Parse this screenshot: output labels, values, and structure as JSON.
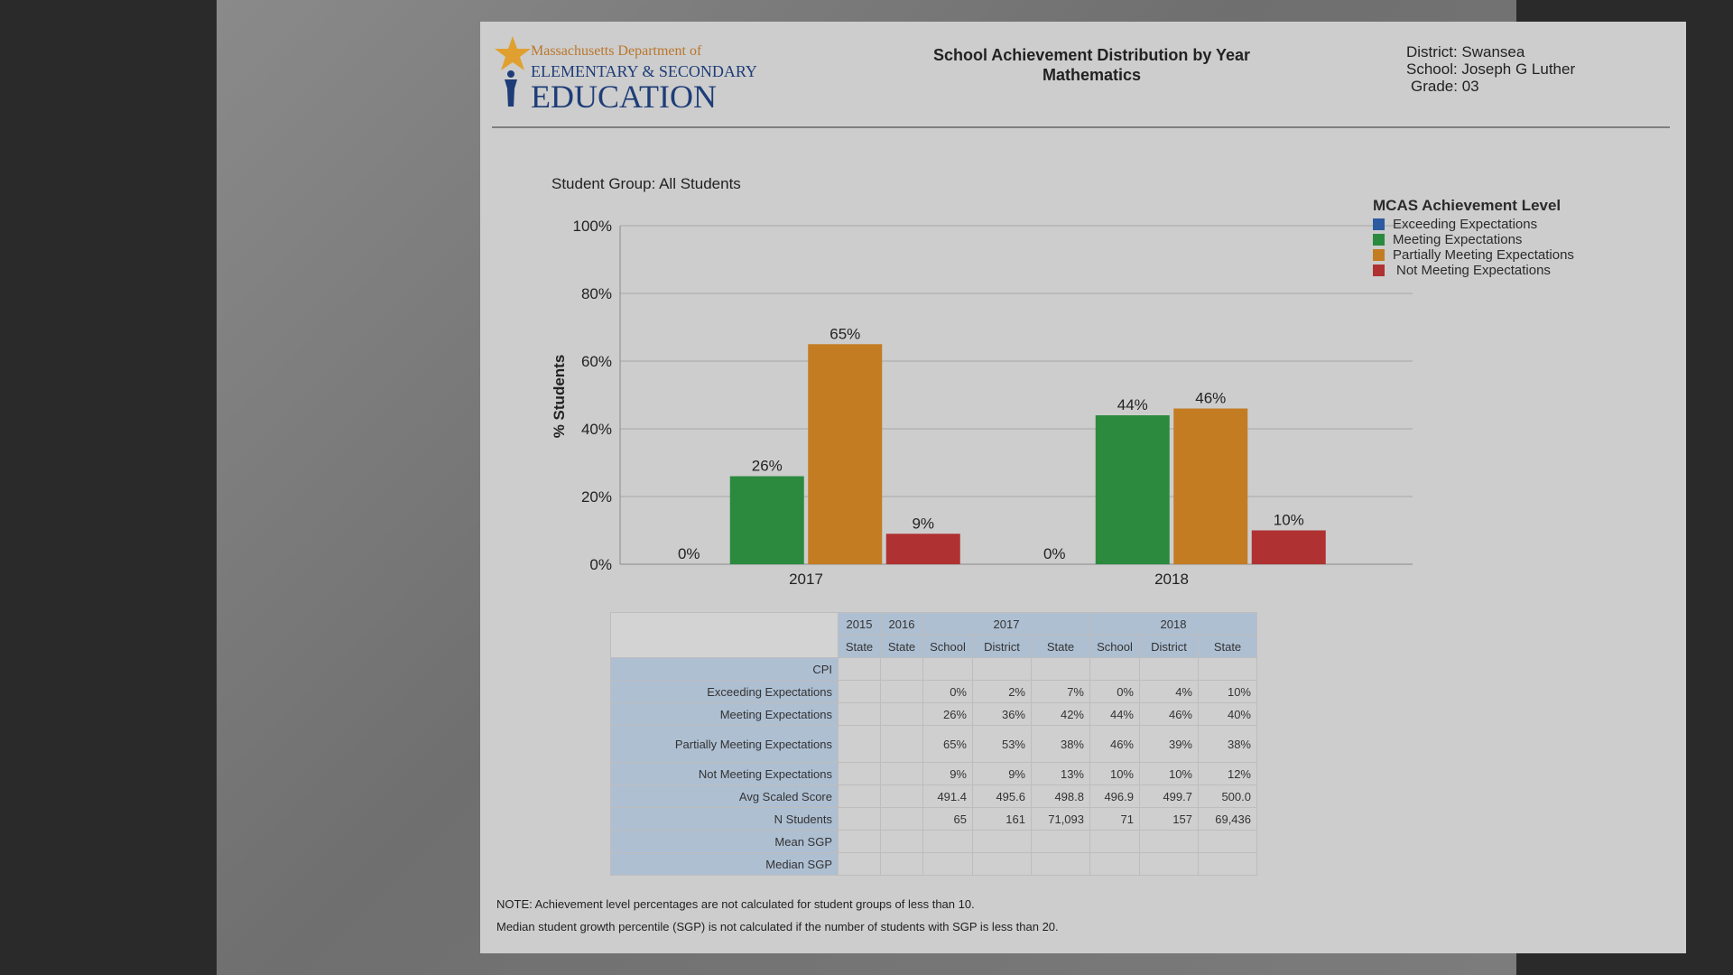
{
  "header": {
    "logo_line1": "Massachusetts Department of",
    "logo_line2": "ELEMENTARY & SECONDARY",
    "logo_line3": "EDUCATION",
    "title_line1": "School Achievement Distribution by Year",
    "title_line2": "Mathematics",
    "district": "District: Swansea",
    "school": "School: Joseph G Luther",
    "grade": "Grade: 03"
  },
  "chart_data": {
    "type": "bar",
    "title": "Student Group: All Students",
    "ylabel": "% Students",
    "xlabel": "",
    "ylim": [
      0,
      100
    ],
    "yticks": [
      "0%",
      "20%",
      "40%",
      "60%",
      "80%",
      "100%"
    ],
    "categories": [
      "2017",
      "2018"
    ],
    "series": [
      {
        "name": "Exceeding Expectations",
        "values": [
          0,
          0
        ],
        "labels": [
          "0%",
          "0%"
        ]
      },
      {
        "name": "Meeting Expectations",
        "values": [
          26,
          44
        ],
        "labels": [
          "26%",
          "44%"
        ]
      },
      {
        "name": "Partially Meeting Expectations",
        "values": [
          65,
          46
        ],
        "labels": [
          "65%",
          "46%"
        ]
      },
      {
        "name": "Not Meeting Expectations",
        "values": [
          9,
          10
        ],
        "labels": [
          "9%",
          "10%"
        ]
      }
    ],
    "grid": true,
    "legend_position": "right",
    "legend_title": "MCAS Achievement Level"
  },
  "colors": {
    "exceeding": "#2c5aa0",
    "meeting": "#2b8a3e",
    "partially": "#c37c22",
    "not_meeting": "#b03132"
  },
  "table": {
    "year_headers": [
      "2015",
      "2016",
      "2017",
      "2018"
    ],
    "sub_headers": [
      "State",
      "State",
      "School",
      "District",
      "State",
      "School",
      "District",
      "State"
    ],
    "rows": [
      {
        "label": "CPI",
        "values": [
          "",
          "",
          "",
          "",
          "",
          "",
          "",
          ""
        ]
      },
      {
        "label": "Exceeding Expectations",
        "values": [
          "",
          "",
          "0%",
          "2%",
          "7%",
          "0%",
          "4%",
          "10%"
        ]
      },
      {
        "label": "Meeting Expectations",
        "values": [
          "",
          "",
          "26%",
          "36%",
          "42%",
          "44%",
          "46%",
          "40%"
        ]
      },
      {
        "label": "Partially Meeting Expectations",
        "values": [
          "",
          "",
          "65%",
          "53%",
          "38%",
          "46%",
          "39%",
          "38%"
        ]
      },
      {
        "label": "Not Meeting Expectations",
        "values": [
          "",
          "",
          "9%",
          "9%",
          "13%",
          "10%",
          "10%",
          "12%"
        ]
      },
      {
        "label": "Avg Scaled Score",
        "values": [
          "",
          "",
          "491.4",
          "495.6",
          "498.8",
          "496.9",
          "499.7",
          "500.0"
        ]
      },
      {
        "label": "N Students",
        "values": [
          "",
          "",
          "65",
          "161",
          "71,093",
          "71",
          "157",
          "69,436"
        ]
      },
      {
        "label": "Mean SGP",
        "values": [
          "",
          "",
          "",
          "",
          "",
          "",
          "",
          ""
        ]
      },
      {
        "label": "Median SGP",
        "values": [
          "",
          "",
          "",
          "",
          "",
          "",
          "",
          ""
        ]
      }
    ]
  },
  "notes": {
    "line1": "NOTE: Achievement level percentages are not calculated for student groups of less than 10.",
    "line2": "Median student growth percentile (SGP) is not calculated if the number of students with SGP is less than 20."
  }
}
